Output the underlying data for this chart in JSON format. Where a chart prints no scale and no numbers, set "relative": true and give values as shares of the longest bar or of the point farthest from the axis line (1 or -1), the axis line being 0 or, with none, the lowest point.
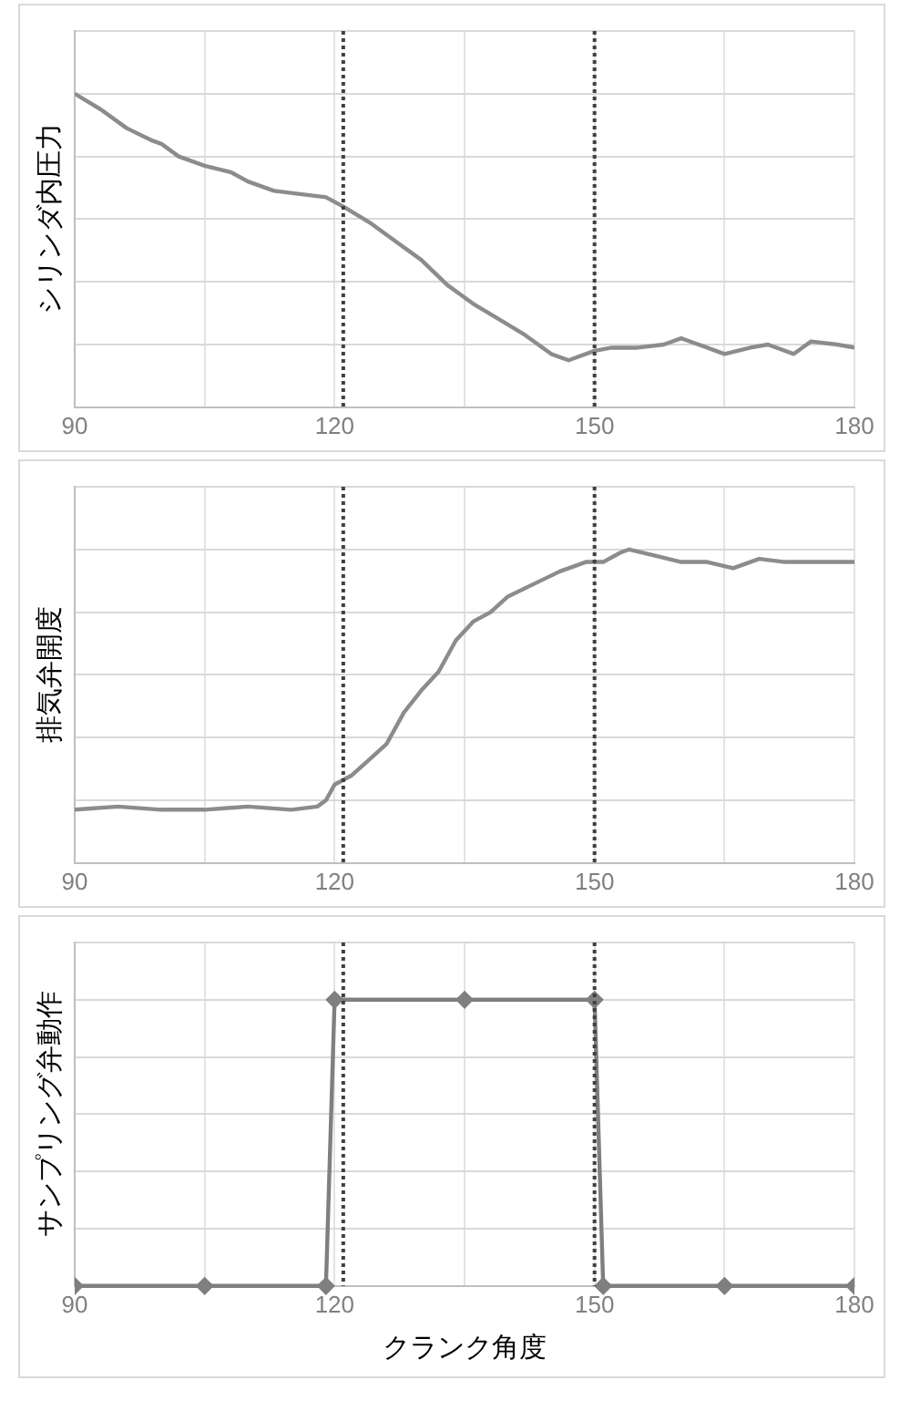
{
  "chart_data": [
    {
      "type": "line",
      "ylabel": "シリンダ内圧力",
      "relative": true,
      "color": "#8c8c8c",
      "marker": "none",
      "grid": true,
      "tick_labels": "x",
      "xlim": [
        90,
        180
      ],
      "xticks": [
        90,
        {
          "value": 105,
          "label": null
        },
        120,
        {
          "value": 135,
          "label": null
        },
        150,
        {
          "value": 165,
          "label": null
        },
        180
      ],
      "x": [
        90,
        93,
        96,
        99,
        100,
        102,
        105,
        108,
        110,
        113,
        116,
        119,
        121,
        124,
        127,
        130,
        133,
        136,
        139,
        142,
        145,
        147,
        150,
        152,
        155,
        158,
        160,
        163,
        165,
        168,
        170,
        173,
        175,
        178,
        180
      ],
      "values": [
        1.0,
        0.95,
        0.89,
        0.85,
        0.84,
        0.8,
        0.77,
        0.75,
        0.72,
        0.69,
        0.68,
        0.67,
        0.64,
        0.59,
        0.53,
        0.47,
        0.39,
        0.33,
        0.28,
        0.23,
        0.17,
        0.15,
        0.18,
        0.19,
        0.19,
        0.2,
        0.22,
        0.19,
        0.17,
        0.19,
        0.2,
        0.17,
        0.21,
        0.2,
        0.19
      ],
      "ref_lines": [
        {
          "axis": "x",
          "value": 121,
          "color": "#404040",
          "line_style": "dotted"
        },
        {
          "axis": "x",
          "value": 150,
          "color": "#404040",
          "line_style": "dotted"
        }
      ]
    },
    {
      "type": "line",
      "ylabel": "排気弁開度",
      "relative": true,
      "color": "#8c8c8c",
      "marker": "none",
      "grid": true,
      "tick_labels": "x",
      "xlim": [
        90,
        180
      ],
      "xticks": [
        90,
        {
          "value": 105,
          "label": null
        },
        120,
        {
          "value": 135,
          "label": null
        },
        150,
        {
          "value": 165,
          "label": null
        },
        180
      ],
      "x": [
        90,
        95,
        100,
        105,
        110,
        115,
        118,
        119,
        120,
        122,
        124,
        126,
        128,
        130,
        132,
        134,
        136,
        138,
        140,
        143,
        146,
        149,
        151,
        153,
        154,
        157,
        160,
        163,
        166,
        169,
        172,
        175,
        178,
        180
      ],
      "values": [
        0.17,
        0.18,
        0.17,
        0.17,
        0.18,
        0.17,
        0.18,
        0.2,
        0.25,
        0.28,
        0.33,
        0.38,
        0.48,
        0.55,
        0.61,
        0.71,
        0.77,
        0.8,
        0.85,
        0.89,
        0.93,
        0.96,
        0.96,
        0.99,
        1.0,
        0.98,
        0.96,
        0.96,
        0.94,
        0.97,
        0.96,
        0.96,
        0.96,
        0.96
      ],
      "ref_lines": [
        {
          "axis": "x",
          "value": 121,
          "color": "#404040",
          "line_style": "dotted"
        },
        {
          "axis": "x",
          "value": 150,
          "color": "#404040",
          "line_style": "dotted"
        }
      ]
    },
    {
      "type": "line",
      "ylabel": "サンプリング弁動作",
      "xlabel": "クランク角度",
      "relative": true,
      "color": "#7f7f7f",
      "marker": "diamond",
      "grid": true,
      "tick_labels": "x",
      "xlim": [
        90,
        180
      ],
      "xticks": [
        90,
        {
          "value": 105,
          "label": null
        },
        120,
        {
          "value": 135,
          "label": null
        },
        150,
        {
          "value": 165,
          "label": null
        },
        180
      ],
      "x": [
        90,
        105,
        119,
        120,
        135,
        150,
        151,
        165,
        180
      ],
      "values": [
        0,
        0,
        0,
        1,
        1,
        1,
        0,
        0,
        0
      ],
      "ref_lines": [
        {
          "axis": "x",
          "value": 121,
          "color": "#404040",
          "line_style": "dotted"
        },
        {
          "axis": "x",
          "value": 150,
          "color": "#404040",
          "line_style": "dotted"
        }
      ]
    }
  ]
}
